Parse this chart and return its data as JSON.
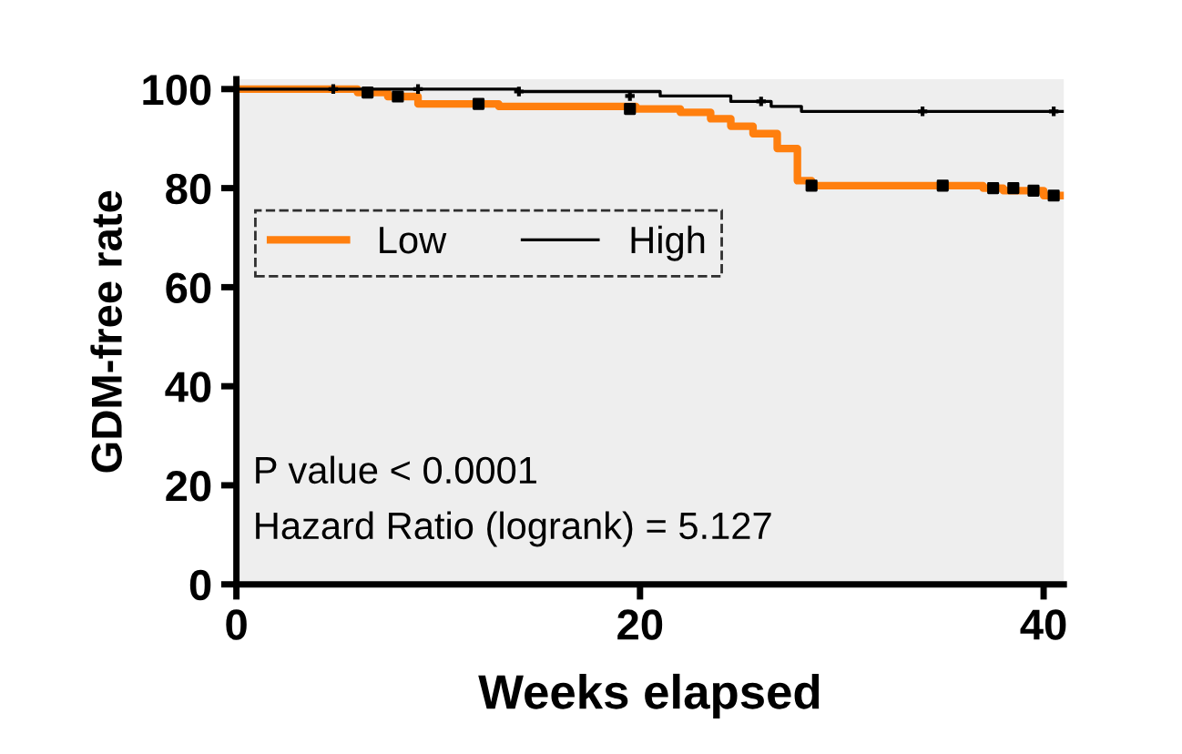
{
  "chart_data": {
    "type": "step",
    "xlabel": "Weeks elapsed",
    "ylabel": "GDM-free rate",
    "xlim": [
      0,
      41
    ],
    "ylim": [
      0,
      102
    ],
    "xticks": [
      0,
      20,
      40
    ],
    "yticks": [
      0,
      20,
      40,
      60,
      80,
      100
    ],
    "legend": "left",
    "marker": "none",
    "line_style": "solid",
    "series": [
      {
        "name": "Low",
        "color": "#ff7f0e",
        "x": [
          0,
          6,
          7.5,
          9,
          13,
          19.8,
          22,
          23.5,
          24.5,
          25.6,
          26.8,
          27.8,
          28.5,
          37,
          38,
          40,
          41
        ],
        "values": [
          100,
          99.3,
          98.5,
          97,
          96.5,
          96,
          95.3,
          94,
          92.5,
          91,
          88,
          81.5,
          80.5,
          80,
          79.5,
          78.5,
          78.5
        ]
      },
      {
        "name": "High",
        "color": "#000000",
        "x": [
          0,
          14,
          21,
          24.5,
          26.5,
          28,
          41
        ],
        "values": [
          100,
          99.5,
          98.6,
          97.5,
          96.5,
          95.5,
          95.5
        ]
      },
      {
        "type": "scatter",
        "color": "#000000",
        "marker": "square",
        "x": [
          6.5,
          8,
          12,
          19.5,
          28.5,
          35,
          37.5,
          38.5,
          39.5,
          40.5
        ],
        "values": [
          99.3,
          98.5,
          97,
          96,
          80.5,
          80.5,
          80,
          80,
          79.5,
          78.5
        ]
      },
      {
        "type": "scatter",
        "color": "#000000",
        "marker": "cross",
        "x": [
          4.8,
          9,
          14,
          19.5,
          26,
          34,
          40.5
        ],
        "values": [
          100,
          100,
          99.5,
          98.6,
          97.5,
          95.5,
          95.5
        ]
      }
    ],
    "annotations": [
      "P value < 0.0001",
      "Hazard Ratio (logrank) = 5.127"
    ]
  }
}
